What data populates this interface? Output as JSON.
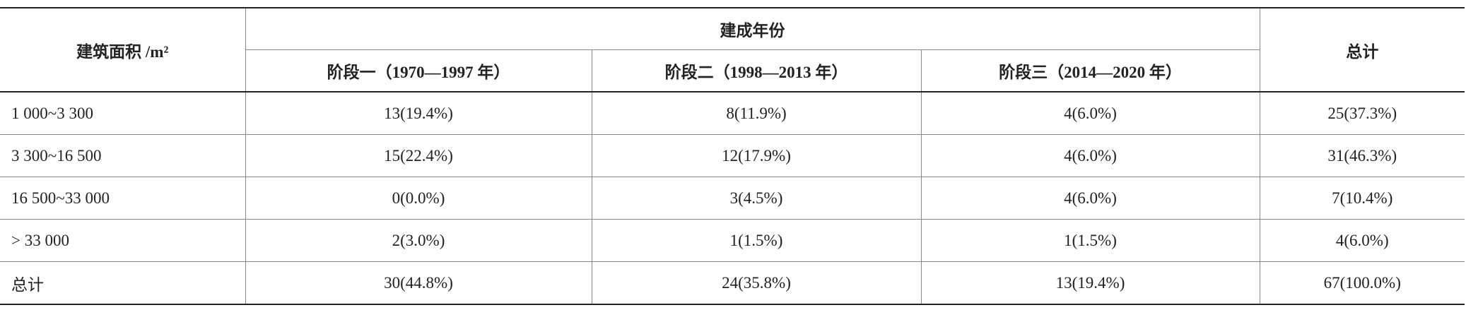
{
  "header": {
    "area": "建筑面积 /m²",
    "group": "建成年份",
    "stages": [
      "阶段一（1970—1997 年）",
      "阶段二（1998—2013 年）",
      "阶段三（2014—2020 年）"
    ],
    "total": "总计"
  },
  "table": {
    "rows": [
      [
        "1 000~3 300",
        "13(19.4%)",
        "8(11.9%)",
        "4(6.0%)",
        "25(37.3%)"
      ],
      [
        "3 300~16 500",
        "15(22.4%)",
        "12(17.9%)",
        "4(6.0%)",
        "31(46.3%)"
      ],
      [
        "16 500~33 000",
        "0(0.0%)",
        "3(4.5%)",
        "4(6.0%)",
        "7(10.4%)"
      ],
      [
        "> 33 000",
        "2(3.0%)",
        "1(1.5%)",
        "1(1.5%)",
        "4(6.0%)"
      ],
      [
        "总计",
        "30(44.8%)",
        "24(35.8%)",
        "13(19.4%)",
        "67(100.0%)"
      ]
    ]
  }
}
